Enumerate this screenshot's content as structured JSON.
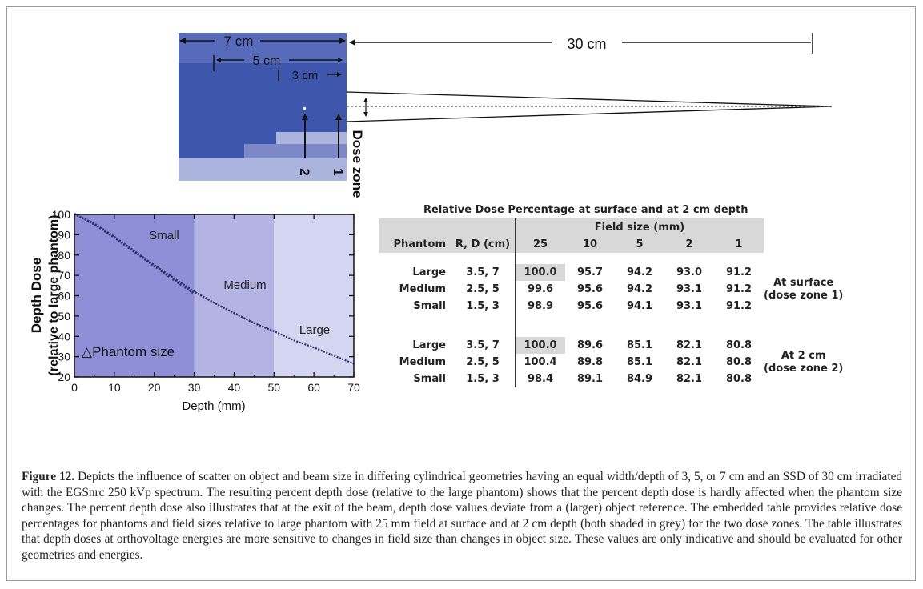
{
  "schematic": {
    "label_7cm": "7 cm",
    "label_5cm": "5 cm",
    "label_3cm": "3 cm",
    "label_30cm": "30 cm",
    "dose_zone_label": "Dose zone",
    "zone_1": "1",
    "zone_2": "2",
    "colors": {
      "large": "#3f56ad",
      "medium": "#7d88c8",
      "small": "#aab4dc",
      "light": "#c5cde9"
    }
  },
  "chart_data": {
    "type": "line",
    "xlabel": "Depth (mm)",
    "ylabel_line1": "Depth Dose",
    "ylabel_line2": "(relative to large phantom)",
    "xlim": [
      0,
      70
    ],
    "ylim": [
      20,
      100
    ],
    "xticks": [
      0,
      10,
      20,
      30,
      40,
      50,
      60,
      70
    ],
    "yticks": [
      20,
      30,
      40,
      50,
      60,
      70,
      80,
      90,
      100
    ],
    "region_labels": {
      "small": "Small",
      "medium": "Medium",
      "large": "Large"
    },
    "annotation": "△Phantom size",
    "regions": [
      {
        "name": "small",
        "x_range": [
          0,
          30
        ],
        "color": "#8e8fd6"
      },
      {
        "name": "medium",
        "x_range": [
          30,
          50
        ],
        "color": "#b3b4e4"
      },
      {
        "name": "large",
        "x_range": [
          50,
          70
        ],
        "color": "#d4d5f0"
      }
    ],
    "series": [
      {
        "x": [
          0,
          5,
          10,
          15,
          20,
          25,
          30
        ],
        "y": [
          100.4,
          95.0,
          88.5,
          81.5,
          74.5,
          67.5,
          61.0
        ]
      },
      {
        "x": [
          0,
          5,
          10,
          15,
          20,
          25,
          30,
          35,
          40,
          45,
          50
        ],
        "y": [
          100.2,
          95.5,
          89.0,
          82.0,
          75.0,
          68.5,
          62.0,
          56.5,
          51.5,
          46.5,
          42.5
        ]
      },
      {
        "x": [
          0,
          5,
          10,
          15,
          20,
          25,
          30,
          35,
          40,
          45,
          50,
          55,
          60,
          65,
          70
        ],
        "y": [
          100.0,
          95.5,
          89.0,
          82.0,
          75.0,
          68.5,
          62.0,
          56.5,
          51.5,
          46.5,
          42.5,
          38.0,
          34.5,
          30.5,
          26.5
        ]
      }
    ]
  },
  "table": {
    "title": "Relative Dose Percentage at surface and at 2 cm depth",
    "field_size_header": "Field size (mm)",
    "col_phantom": "Phantom",
    "col_rd": "R, D (cm)",
    "field_sizes": [
      "25",
      "10",
      "5",
      "2",
      "1"
    ],
    "surface_note_line1": "At surface",
    "surface_note_line2": "(dose zone 1)",
    "depth_note_line1": "At 2 cm",
    "depth_note_line2": "(dose zone 2)",
    "surface_rows": [
      {
        "phantom": "Large",
        "rd": "3.5, 7",
        "values": [
          "100.0",
          "95.7",
          "94.2",
          "93.0",
          "91.2"
        ]
      },
      {
        "phantom": "Medium",
        "rd": "2.5, 5",
        "values": [
          "99.6",
          "95.6",
          "94.2",
          "93.1",
          "91.2"
        ]
      },
      {
        "phantom": "Small",
        "rd": "1.5, 3",
        "values": [
          "98.9",
          "95.6",
          "94.1",
          "93.1",
          "91.2"
        ]
      }
    ],
    "depth_rows": [
      {
        "phantom": "Large",
        "rd": "3.5, 7",
        "values": [
          "100.0",
          "89.6",
          "85.1",
          "82.1",
          "80.8"
        ]
      },
      {
        "phantom": "Medium",
        "rd": "2.5, 5",
        "values": [
          "100.4",
          "89.8",
          "85.1",
          "82.1",
          "80.8"
        ]
      },
      {
        "phantom": "Small",
        "rd": "1.5, 3",
        "values": [
          "98.4",
          "89.1",
          "84.9",
          "82.1",
          "80.8"
        ]
      }
    ]
  },
  "caption": {
    "label": "Figure 12.",
    "text": "Depicts the influence of scatter on object and beam size in differing cylindrical geometries having an equal width/depth of 3, 5, or 7 cm and an SSD of 30 cm irradiated with the EGSnrc 250 kVp spectrum. The resulting percent depth dose (relative to the large phantom) shows that the percent depth dose is hardly affected when the phantom size changes. The percent depth dose also illustrates that at the exit of the beam, depth dose values deviate from a (larger) object reference. The embedded table provides relative dose percentages for phantoms and field sizes relative to large phantom with 25 mm field at surface and at 2 cm depth (both shaded in grey) for the two dose zones. The table illustrates that depth doses at orthovoltage energies are more sensitive to changes in field size than changes in object size. These values are only indicative and should be evaluated for other geometries and energies."
  }
}
